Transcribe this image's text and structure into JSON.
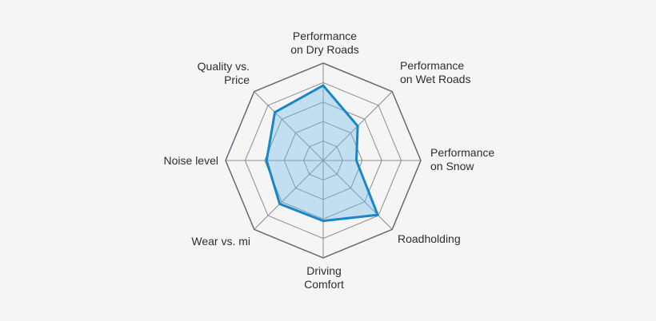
{
  "page": {
    "background_color": "#f5f5f5"
  },
  "chart_data": {
    "type": "radar",
    "categories": [
      "Performance on Dry Roads",
      "Performance on Wet Roads",
      "Performance on Snow",
      "Roadholding",
      "Driving Comfort",
      "Wear vs. mi",
      "Noise level",
      "Quality vs. Price"
    ],
    "axis_display_labels": [
      "Performance\non Dry Roads",
      "Performance\non Wet Roads",
      "Performance\non Snow",
      "Roadholding",
      "Driving\nComfort",
      "Wear vs. mi",
      "Noise level",
      "Quality vs.\nPrice"
    ],
    "values": [
      3.85,
      2.5,
      1.7,
      3.95,
      3.1,
      3.15,
      2.9,
      3.5
    ],
    "value_axis": {
      "min": 0,
      "max": 5,
      "rings": 5,
      "tick_labels_visible": false
    },
    "grid": {
      "shape": "polygon",
      "sides": 8,
      "spokes": true
    },
    "legend": {
      "visible": false
    },
    "colors": {
      "series_stroke": "#1987c5",
      "series_fill": "rgba(110,185,235,0.38)",
      "grid_line": "#8c8c8c",
      "outer_ring": "#5d6a77",
      "label_text": "#2e2e2e",
      "background": "#f5f5f5"
    }
  }
}
